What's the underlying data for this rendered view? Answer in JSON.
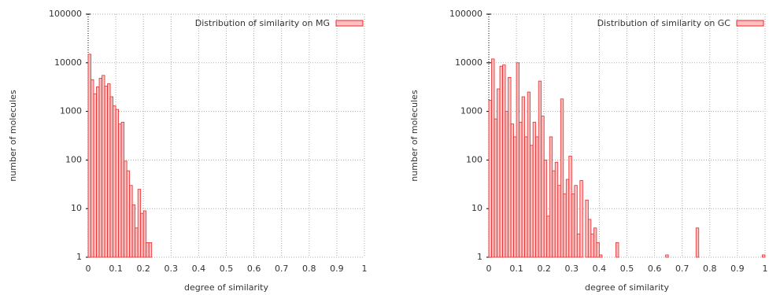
{
  "chart_data": [
    {
      "type": "histogram",
      "ylabel": "number of molecules",
      "xlabel": "degree of similarity",
      "series_name": "Distribution of similarity on MG",
      "color": "#e8292b",
      "fill": "#ffc0c0",
      "log_y": true,
      "grid": true,
      "legend": "top-right",
      "bins": [
        0,
        0.01,
        0.02,
        0.03,
        0.04,
        0.05,
        0.06,
        0.07,
        0.08,
        0.09,
        0.1,
        0.11,
        0.12,
        0.13,
        0.14,
        0.15,
        0.16,
        0.17,
        0.18,
        0.19,
        0.2,
        0.21,
        0.22,
        0.23
      ],
      "values": [
        15000,
        4500,
        2300,
        3200,
        4800,
        5500,
        3300,
        3700,
        2000,
        1300,
        1100,
        550,
        600,
        95,
        60,
        30,
        12,
        4,
        25,
        8,
        9,
        2,
        2
      ],
      "xlim": [
        0,
        1
      ],
      "xticks": [
        0,
        0.1,
        0.2,
        0.3,
        0.4,
        0.5,
        0.6,
        0.7,
        0.8,
        0.9,
        1
      ],
      "ylim": [
        1,
        100000
      ],
      "yticks": [
        1,
        10,
        100,
        1000,
        10000,
        100000
      ]
    },
    {
      "type": "histogram",
      "ylabel": "number of molecules",
      "xlabel": "degree of similarity",
      "series_name": "Distribution of similarity on GC",
      "color": "#e8292b",
      "fill": "#ffc0c0",
      "log_y": true,
      "grid": true,
      "legend": "top-right",
      "bins": [
        0,
        0.01,
        0.02,
        0.03,
        0.04,
        0.05,
        0.06,
        0.07,
        0.08,
        0.09,
        0.1,
        0.11,
        0.12,
        0.13,
        0.14,
        0.15,
        0.16,
        0.17,
        0.18,
        0.19,
        0.2,
        0.21,
        0.22,
        0.23,
        0.24,
        0.25,
        0.26,
        0.27,
        0.28,
        0.29,
        0.3,
        0.31,
        0.32,
        0.33,
        0.34,
        0.35,
        0.36,
        0.37,
        0.38,
        0.39,
        0.4,
        0.41,
        0.42,
        0.43,
        0.44,
        0.45,
        0.46,
        0.47,
        0.48,
        0.49,
        0.5,
        0.51,
        0.52,
        0.53,
        0.54,
        0.55,
        0.56,
        0.57,
        0.58,
        0.59,
        0.6,
        0.61,
        0.62,
        0.63,
        0.64,
        0.65,
        0.66,
        0.67,
        0.68,
        0.69,
        0.7,
        0.71,
        0.72,
        0.73,
        0.74,
        0.75,
        0.76,
        0.77,
        0.78,
        0.79,
        0.8,
        0.81,
        0.82,
        0.83,
        0.84,
        0.85,
        0.86,
        0.87,
        0.88,
        0.89,
        0.9,
        0.91,
        0.92,
        0.93,
        0.94,
        0.95,
        0.96,
        0.97,
        0.98,
        0.99,
        1
      ],
      "values": [
        1700,
        12000,
        700,
        2900,
        8500,
        9000,
        1000,
        5000,
        550,
        300,
        10000,
        600,
        2000,
        300,
        2500,
        200,
        600,
        300,
        4200,
        800,
        100,
        7,
        300,
        60,
        90,
        30,
        1800,
        20,
        40,
        120,
        20,
        30,
        3,
        38,
        0,
        15,
        6,
        3,
        4,
        2,
        1,
        0,
        0,
        0,
        0,
        0,
        2,
        0,
        0,
        0,
        0,
        0,
        0,
        0,
        0,
        0,
        0,
        0,
        0,
        0,
        0,
        0,
        0,
        0,
        1,
        0,
        0,
        0,
        0,
        0,
        0,
        0,
        0,
        0,
        0,
        4,
        0,
        0,
        0,
        0,
        0,
        0,
        0,
        0,
        0,
        0,
        0,
        0,
        0,
        0,
        0,
        0,
        0,
        0,
        0,
        0,
        0,
        0,
        0,
        1
      ],
      "xlim": [
        0,
        1
      ],
      "xticks": [
        0,
        0.1,
        0.2,
        0.3,
        0.4,
        0.5,
        0.6,
        0.7,
        0.8,
        0.9,
        1
      ],
      "ylim": [
        1,
        100000
      ],
      "yticks": [
        1,
        10,
        100,
        1000,
        10000,
        100000
      ]
    }
  ]
}
